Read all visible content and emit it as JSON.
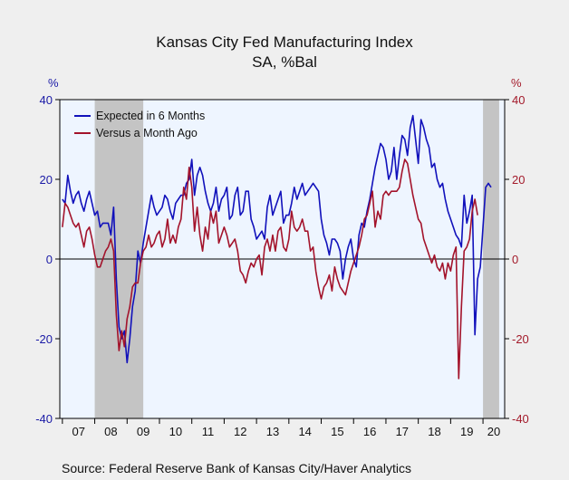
{
  "chart_data": {
    "type": "line",
    "title": "Kansas City Fed Manufacturing Index",
    "subtitle": "SA, %Bal",
    "y_unit_left": "%",
    "y_unit_right": "%",
    "ylim": [
      -40,
      40
    ],
    "y_ticks": [
      40,
      20,
      0,
      -20,
      -40
    ],
    "x_range": [
      2006.92,
      2020.67
    ],
    "x_tick_labels": [
      "07",
      "08",
      "09",
      "10",
      "11",
      "12",
      "13",
      "14",
      "15",
      "16",
      "17",
      "18",
      "19",
      "20"
    ],
    "recessions": [
      [
        2008.0,
        2009.5
      ],
      [
        2020.0,
        2020.5
      ]
    ],
    "grid": false,
    "legend_position": "top-left",
    "source": "Source:   Federal Reserve Bank of Kansas City/Haver Analytics",
    "colors": {
      "expected": "#1111bb",
      "versus": "#a3132b",
      "recession": "#c4c4c4",
      "plot_bg": "#eef5ff"
    },
    "series": [
      {
        "name": "Expected in 6 Months",
        "key": "expected",
        "x_start": 2007.0,
        "step_months": 1,
        "values": [
          15,
          14,
          21,
          17,
          14,
          16,
          17,
          14,
          12,
          15,
          17,
          14,
          11,
          12,
          8,
          9,
          9,
          9,
          6,
          13,
          -5,
          -17,
          -20,
          -18,
          -26,
          -20,
          -12,
          -8,
          2,
          -1,
          4,
          8,
          12,
          16,
          13,
          11,
          12,
          13,
          16,
          15,
          12,
          10,
          14,
          15,
          16,
          16,
          19,
          20,
          25,
          16,
          21,
          23,
          21,
          17,
          14,
          12,
          14,
          18,
          12,
          15,
          16,
          18,
          10,
          11,
          16,
          18,
          11,
          12,
          17,
          17,
          10,
          8,
          5,
          6,
          7,
          5,
          13,
          16,
          11,
          13,
          15,
          17,
          9,
          11,
          11,
          14,
          18,
          15,
          17,
          19,
          16,
          17,
          18,
          19,
          18,
          17,
          10,
          6,
          4,
          1,
          5,
          5,
          4,
          2,
          -5,
          0,
          3,
          5,
          0,
          -2,
          6,
          9,
          8,
          12,
          15,
          19,
          23,
          26,
          29,
          28,
          25,
          20,
          22,
          28,
          20,
          26,
          31,
          30,
          26,
          33,
          36,
          30,
          24,
          35,
          33,
          30,
          28,
          23,
          24,
          20,
          18,
          19,
          15,
          12,
          10,
          8,
          6,
          5,
          3,
          16,
          9,
          12,
          16,
          -19,
          -5,
          -2,
          8,
          18,
          19,
          18
        ]
      },
      {
        "name": "Versus a Month Ago",
        "key": "versus",
        "x_start": 2007.0,
        "step_months": 1,
        "values": [
          8,
          14,
          13,
          11,
          9,
          8,
          9,
          6,
          3,
          7,
          8,
          5,
          1,
          -2,
          -2,
          0,
          2,
          3,
          5,
          2,
          -14,
          -23,
          -18,
          -22,
          -15,
          -12,
          -7,
          -6,
          -6,
          -1,
          2,
          3,
          6,
          3,
          4,
          6,
          7,
          3,
          5,
          10,
          4,
          6,
          4,
          8,
          10,
          18,
          15,
          23,
          18,
          7,
          13,
          6,
          2,
          8,
          5,
          12,
          9,
          12,
          4,
          6,
          8,
          6,
          3,
          4,
          5,
          2,
          -3,
          -4,
          -6,
          -3,
          -1,
          -2,
          0,
          1,
          -4,
          3,
          5,
          2,
          6,
          2,
          7,
          8,
          3,
          2,
          5,
          12,
          8,
          7,
          8,
          10,
          7,
          7,
          2,
          3,
          -3,
          -7,
          -10,
          -7,
          -6,
          -4,
          -8,
          -2,
          -5,
          -7,
          -8,
          -9,
          -6,
          -3,
          -1,
          1,
          3,
          6,
          10,
          11,
          14,
          17,
          8,
          12,
          10,
          16,
          17,
          16,
          17,
          17,
          17,
          18,
          22,
          25,
          24,
          20,
          16,
          13,
          10,
          9,
          5,
          3,
          1,
          -1,
          1,
          -2,
          -3,
          -1,
          -5,
          -1,
          -3,
          1,
          3,
          -30,
          -12,
          2,
          3,
          5,
          12,
          15,
          11
        ]
      }
    ]
  }
}
